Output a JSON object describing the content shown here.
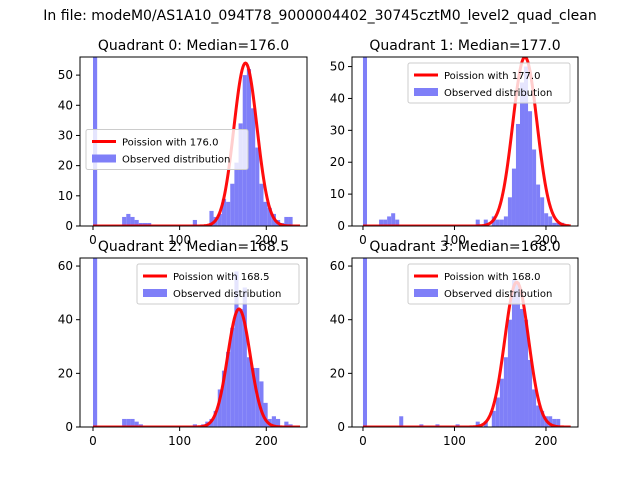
{
  "figure": {
    "suptitle": "In file: modeM0/AS1A10_094T78_9000004402_30745cztM0_level2_quad_clean"
  },
  "legend_labels": {
    "hist": "Observed distribution"
  },
  "colors": {
    "hist": "#7f7ff8",
    "fit": "#ff0000",
    "axes": "#000000",
    "legend_border": "#cccccc",
    "background": "#ffffff"
  },
  "chart_data": [
    {
      "type": "bar",
      "subtype": "histogram_with_poisson_fit",
      "title": "Quadrant 0: Median=176.0",
      "fit_label": "Poission with 176.0",
      "median": 176.0,
      "fit_peak": 54,
      "fit_sigma": 13.3,
      "legend_position": "center-left",
      "xlim": [
        -15,
        247
      ],
      "ylim": [
        0,
        56
      ],
      "xticks": [
        0,
        100,
        200
      ],
      "yticks": [
        0,
        10,
        20,
        30,
        40,
        50
      ],
      "bin_width": 4.8,
      "bins": [
        [
          0,
          56
        ],
        [
          33.6,
          3
        ],
        [
          38.4,
          4
        ],
        [
          43.2,
          3
        ],
        [
          48,
          2
        ],
        [
          52.8,
          1
        ],
        [
          57.6,
          1
        ],
        [
          62.4,
          1
        ],
        [
          115.2,
          2
        ],
        [
          134.4,
          5
        ],
        [
          139.2,
          3
        ],
        [
          144,
          4
        ],
        [
          148.8,
          9
        ],
        [
          153.6,
          8
        ],
        [
          158.4,
          14
        ],
        [
          163.2,
          21
        ],
        [
          168,
          34
        ],
        [
          172.8,
          50
        ],
        [
          177.6,
          52
        ],
        [
          182.4,
          39
        ],
        [
          187.2,
          26
        ],
        [
          192,
          14
        ],
        [
          196.8,
          8
        ],
        [
          201.6,
          6
        ],
        [
          206.4,
          4
        ],
        [
          211.2,
          2
        ],
        [
          216,
          1
        ],
        [
          220.8,
          3
        ],
        [
          225.6,
          3
        ]
      ]
    },
    {
      "type": "bar",
      "subtype": "histogram_with_poisson_fit",
      "title": "Quadrant 1: Median=177.0",
      "fit_label": "Poission with 177.0",
      "median": 177.0,
      "fit_peak": 53,
      "fit_sigma": 13.3,
      "legend_position": "top-right",
      "xlim": [
        -12,
        235
      ],
      "ylim": [
        0,
        53
      ],
      "xticks": [
        0,
        100,
        200
      ],
      "yticks": [
        0,
        10,
        20,
        30,
        40,
        50
      ],
      "bin_width": 4.4,
      "bins": [
        [
          0,
          53
        ],
        [
          17.6,
          2
        ],
        [
          22,
          2
        ],
        [
          26.4,
          3
        ],
        [
          30.8,
          4
        ],
        [
          35.2,
          2
        ],
        [
          123.2,
          2
        ],
        [
          132,
          2
        ],
        [
          140.8,
          3
        ],
        [
          145.2,
          2
        ],
        [
          149.6,
          2
        ],
        [
          154,
          3
        ],
        [
          158.4,
          9
        ],
        [
          162.8,
          18
        ],
        [
          167.2,
          32
        ],
        [
          171.6,
          45
        ],
        [
          176,
          50
        ],
        [
          180.4,
          36
        ],
        [
          184.8,
          24
        ],
        [
          189.2,
          13
        ],
        [
          193.6,
          9
        ],
        [
          198,
          4
        ],
        [
          202.4,
          3
        ],
        [
          206.8,
          1
        ],
        [
          211.2,
          1
        ],
        [
          215.6,
          1
        ]
      ]
    },
    {
      "type": "bar",
      "subtype": "histogram_with_poisson_fit",
      "title": "Quadrant 2: Median=168.5",
      "fit_label": "Poission with 168.5",
      "median": 168.5,
      "fit_peak": 44,
      "fit_sigma": 13,
      "legend_position": "top-right",
      "xlim": [
        -15,
        247
      ],
      "ylim": [
        0,
        63
      ],
      "xticks": [
        0,
        100,
        200
      ],
      "yticks": [
        0,
        20,
        40,
        60
      ],
      "bin_width": 4.8,
      "bins": [
        [
          0,
          63
        ],
        [
          33.6,
          3
        ],
        [
          38.4,
          3
        ],
        [
          43.2,
          3
        ],
        [
          48,
          2
        ],
        [
          52.8,
          1
        ],
        [
          115.2,
          1
        ],
        [
          124.8,
          1
        ],
        [
          129.6,
          2
        ],
        [
          134.4,
          3
        ],
        [
          139.2,
          6
        ],
        [
          144,
          14
        ],
        [
          148.8,
          21
        ],
        [
          153.6,
          28
        ],
        [
          158.4,
          37
        ],
        [
          163.2,
          58
        ],
        [
          168,
          44
        ],
        [
          172.8,
          52
        ],
        [
          177.6,
          26
        ],
        [
          182.4,
          22
        ],
        [
          187.2,
          22
        ],
        [
          192,
          17
        ],
        [
          196.8,
          9
        ],
        [
          201.6,
          3
        ],
        [
          206.4,
          4
        ],
        [
          211.2,
          3
        ],
        [
          220.8,
          2
        ],
        [
          225.6,
          1
        ]
      ]
    },
    {
      "type": "bar",
      "subtype": "histogram_with_poisson_fit",
      "title": "Quadrant 3: Median=168.0",
      "fit_label": "Poission with 168.0",
      "median": 168.0,
      "fit_peak": 54,
      "fit_sigma": 13,
      "legend_position": "top-right",
      "xlim": [
        -12,
        235
      ],
      "ylim": [
        0,
        63
      ],
      "xticks": [
        0,
        100,
        200
      ],
      "yticks": [
        0,
        20,
        40,
        60
      ],
      "bin_width": 4.4,
      "bins": [
        [
          0,
          63
        ],
        [
          39.6,
          4
        ],
        [
          61.6,
          1
        ],
        [
          79.2,
          1
        ],
        [
          101.2,
          1
        ],
        [
          123.2,
          2
        ],
        [
          132,
          2
        ],
        [
          140.8,
          6
        ],
        [
          145.2,
          11
        ],
        [
          149.6,
          18
        ],
        [
          154,
          26
        ],
        [
          158.4,
          40
        ],
        [
          162.8,
          55
        ],
        [
          167.2,
          54
        ],
        [
          171.6,
          44
        ],
        [
          176,
          40
        ],
        [
          180.4,
          25
        ],
        [
          184.8,
          14
        ],
        [
          189.2,
          8
        ],
        [
          193.6,
          6
        ],
        [
          198,
          4
        ],
        [
          202.4,
          4
        ],
        [
          206.8,
          3
        ],
        [
          211.2,
          3
        ]
      ]
    }
  ]
}
